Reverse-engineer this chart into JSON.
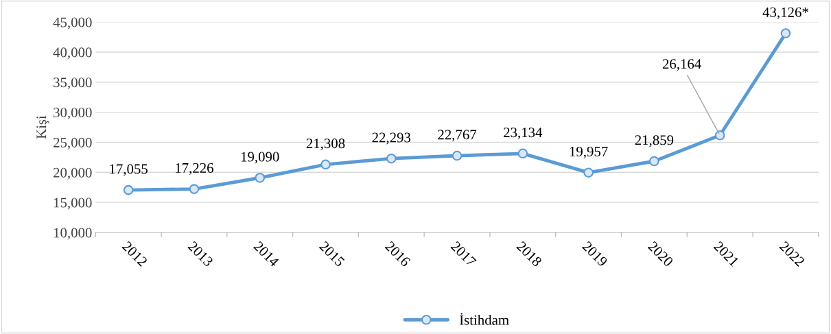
{
  "chart_data": {
    "type": "line",
    "ylabel": "Kişi",
    "categories": [
      "2012",
      "2013",
      "2014",
      "2015",
      "2016",
      "2017",
      "2018",
      "2019",
      "2020",
      "2021",
      "2022"
    ],
    "series": [
      {
        "name": "İstihdam",
        "color": "#5b9bd5",
        "values": [
          17055,
          17226,
          19090,
          21308,
          22293,
          22767,
          23134,
          19957,
          21859,
          26164,
          43126
        ],
        "value_labels": [
          "17,055",
          "17,226",
          "19,090",
          "21,308",
          "22,293",
          "22,767",
          "23,134",
          "19,957",
          "21,859",
          "26,164",
          "43,126*"
        ]
      }
    ],
    "ylim": [
      10000,
      45000
    ],
    "yticks": [
      {
        "value": 10000,
        "label": "10,000"
      },
      {
        "value": 15000,
        "label": "15,000"
      },
      {
        "value": 20000,
        "label": "20,000"
      },
      {
        "value": 25000,
        "label": "25,000"
      },
      {
        "value": 30000,
        "label": "30,000"
      },
      {
        "value": 35000,
        "label": "35,000"
      },
      {
        "value": 40000,
        "label": "40,000"
      },
      {
        "value": 45000,
        "label": "45,000"
      }
    ],
    "grid": "y",
    "legend": "bottom",
    "marker": "circle",
    "line_style": "solid"
  }
}
